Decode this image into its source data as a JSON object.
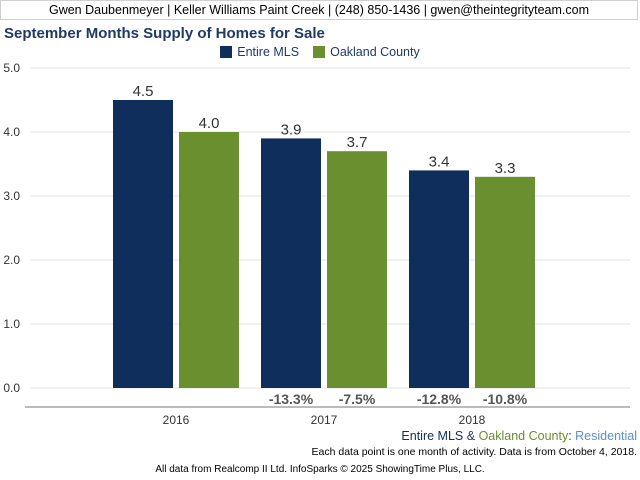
{
  "header": {
    "banner": "Gwen Daubenmeyer | Keller Williams Paint Creek | (248) 850-1436 | gwen@theintegrityteam.com"
  },
  "colors": {
    "entire_mls": "#0f2e5c",
    "oakland": "#6a8f2e",
    "title": "#1f3a68"
  },
  "chart_data": {
    "type": "bar",
    "title": "September Months Supply of Homes for Sale",
    "xlabel": "",
    "ylabel": "",
    "categories": [
      "2016",
      "2017",
      "2018"
    ],
    "series": [
      {
        "name": "Entire MLS",
        "values": [
          4.5,
          3.9,
          3.4
        ],
        "labels": [
          "4.5",
          "3.9",
          "3.4"
        ],
        "changes": [
          "",
          "-13.3%",
          "-12.8%"
        ]
      },
      {
        "name": "Oakland County",
        "values": [
          4.0,
          3.7,
          3.3
        ],
        "labels": [
          "4.0",
          "3.7",
          "3.3"
        ],
        "changes": [
          "",
          "-7.5%",
          "-10.8%"
        ]
      }
    ],
    "ylim": [
      0,
      5
    ],
    "yticks": [
      "0.0",
      "1.0",
      "2.0",
      "3.0",
      "4.0",
      "5.0"
    ],
    "grid": true,
    "legend_position": "top-center"
  },
  "footer": {
    "series_a": "Entire MLS",
    "amp": " & ",
    "series_b": "Oakland County",
    "colon": ": ",
    "segment": "Residential",
    "note": "Each data point is one month of activity. Data is from October 4, 2018.",
    "credit": "All data from Realcomp II Ltd. InfoSparks © 2025 ShowingTime Plus, LLC."
  }
}
